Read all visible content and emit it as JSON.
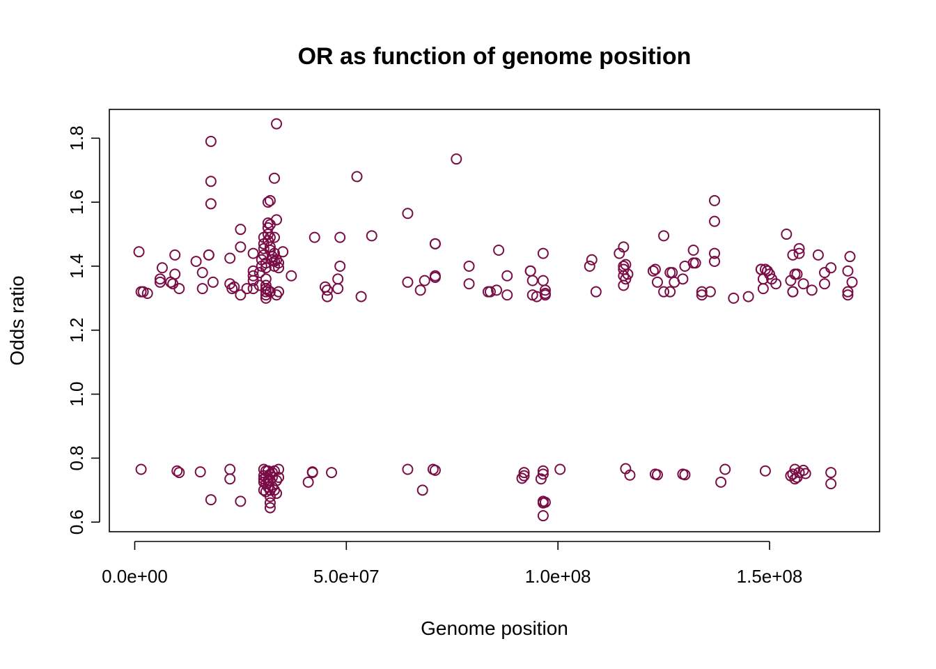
{
  "chart_data": {
    "type": "scatter",
    "title": "OR as function of genome position",
    "xlabel": "Genome position",
    "ylabel": "Odds ratio",
    "xlim": [
      -6000000,
      176000000
    ],
    "ylim": [
      0.57,
      1.89
    ],
    "x_ticks": [
      0,
      50000000,
      100000000,
      150000000
    ],
    "x_tick_labels": [
      "0.0e+00",
      "5.0e+07",
      "1.0e+08",
      "1.5e+08"
    ],
    "y_ticks": [
      0.6,
      0.8,
      1.0,
      1.2,
      1.4,
      1.6,
      1.8
    ],
    "y_tick_labels": [
      "0.6",
      "0.8",
      "1.0",
      "1.2",
      "1.4",
      "1.6",
      "1.8"
    ],
    "grid": false,
    "legend": "none",
    "point_color": "#7a0c45",
    "points": [
      [
        1000000,
        1.445
      ],
      [
        1500000,
        1.32
      ],
      [
        2000000,
        1.32
      ],
      [
        3000000,
        1.315
      ],
      [
        6000000,
        1.36
      ],
      [
        6000000,
        1.35
      ],
      [
        6500000,
        1.395
      ],
      [
        8500000,
        1.35
      ],
      [
        9000000,
        1.345
      ],
      [
        9500000,
        1.435
      ],
      [
        9500000,
        1.375
      ],
      [
        10500000,
        1.33
      ],
      [
        14500000,
        1.415
      ],
      [
        16000000,
        1.38
      ],
      [
        16000000,
        1.33
      ],
      [
        17500000,
        1.435
      ],
      [
        17500000,
        1.435
      ],
      [
        18000000,
        1.79
      ],
      [
        18000000,
        1.665
      ],
      [
        18000000,
        1.595
      ],
      [
        18500000,
        1.35
      ],
      [
        22500000,
        1.425
      ],
      [
        22500000,
        1.345
      ],
      [
        23000000,
        1.33
      ],
      [
        23500000,
        1.335
      ],
      [
        25000000,
        1.515
      ],
      [
        25000000,
        1.46
      ],
      [
        25000000,
        1.31
      ],
      [
        26500000,
        1.33
      ],
      [
        28000000,
        1.44
      ],
      [
        28000000,
        1.385
      ],
      [
        28000000,
        1.37
      ],
      [
        28000000,
        1.355
      ],
      [
        28000000,
        1.33
      ],
      [
        29500000,
        1.38
      ],
      [
        29500000,
        1.34
      ],
      [
        30000000,
        1.42
      ],
      [
        30000000,
        1.4
      ],
      [
        30500000,
        1.49
      ],
      [
        30500000,
        1.47
      ],
      [
        30500000,
        1.455
      ],
      [
        30500000,
        1.435
      ],
      [
        31000000,
        1.41
      ],
      [
        31000000,
        1.395
      ],
      [
        31000000,
        1.36
      ],
      [
        31000000,
        1.34
      ],
      [
        31000000,
        1.33
      ],
      [
        31000000,
        1.32
      ],
      [
        31000000,
        1.31
      ],
      [
        31000000,
        1.3
      ],
      [
        31500000,
        1.6
      ],
      [
        31500000,
        1.535
      ],
      [
        31500000,
        1.52
      ],
      [
        31500000,
        1.5
      ],
      [
        31500000,
        1.48
      ],
      [
        31500000,
        1.325
      ],
      [
        32000000,
        1.605
      ],
      [
        32000000,
        1.53
      ],
      [
        32000000,
        1.49
      ],
      [
        32000000,
        1.46
      ],
      [
        32000000,
        1.45
      ],
      [
        32000000,
        1.32
      ],
      [
        32500000,
        1.43
      ],
      [
        32500000,
        1.42
      ],
      [
        33000000,
        1.675
      ],
      [
        33000000,
        1.49
      ],
      [
        33000000,
        1.44
      ],
      [
        33000000,
        1.415
      ],
      [
        33000000,
        1.4
      ],
      [
        33500000,
        1.845
      ],
      [
        33500000,
        1.545
      ],
      [
        33500000,
        1.42
      ],
      [
        33500000,
        1.31
      ],
      [
        34000000,
        1.41
      ],
      [
        34000000,
        1.395
      ],
      [
        34000000,
        1.32
      ],
      [
        35000000,
        1.445
      ],
      [
        37000000,
        1.37
      ],
      [
        42500000,
        1.49
      ],
      [
        45000000,
        1.335
      ],
      [
        45500000,
        1.325
      ],
      [
        45500000,
        1.305
      ],
      [
        48000000,
        1.33
      ],
      [
        48000000,
        1.36
      ],
      [
        48500000,
        1.4
      ],
      [
        48500000,
        1.49
      ],
      [
        52500000,
        1.68
      ],
      [
        53500000,
        1.305
      ],
      [
        56000000,
        1.495
      ],
      [
        64500000,
        1.565
      ],
      [
        64500000,
        1.35
      ],
      [
        67500000,
        1.325
      ],
      [
        68500000,
        1.355
      ],
      [
        71000000,
        1.47
      ],
      [
        71000000,
        1.47
      ],
      [
        71000000,
        1.37
      ],
      [
        71000000,
        1.365
      ],
      [
        76000000,
        1.735
      ],
      [
        79000000,
        1.4
      ],
      [
        79000000,
        1.345
      ],
      [
        83500000,
        1.32
      ],
      [
        84000000,
        1.32
      ],
      [
        85500000,
        1.325
      ],
      [
        86000000,
        1.45
      ],
      [
        88000000,
        1.37
      ],
      [
        88000000,
        1.31
      ],
      [
        93500000,
        1.385
      ],
      [
        93500000,
        1.385
      ],
      [
        94000000,
        1.355
      ],
      [
        94000000,
        1.31
      ],
      [
        95000000,
        1.305
      ],
      [
        96500000,
        1.44
      ],
      [
        96500000,
        1.355
      ],
      [
        97000000,
        1.31
      ],
      [
        97000000,
        1.315
      ],
      [
        97000000,
        1.325
      ],
      [
        107500000,
        1.4
      ],
      [
        108000000,
        1.42
      ],
      [
        109000000,
        1.32
      ],
      [
        114500000,
        1.44
      ],
      [
        115500000,
        1.46
      ],
      [
        115500000,
        1.4
      ],
      [
        115500000,
        1.39
      ],
      [
        115500000,
        1.37
      ],
      [
        115500000,
        1.34
      ],
      [
        116000000,
        1.405
      ],
      [
        116000000,
        1.36
      ],
      [
        116500000,
        1.375
      ],
      [
        122500000,
        1.385
      ],
      [
        123000000,
        1.39
      ],
      [
        123500000,
        1.35
      ],
      [
        125000000,
        1.495
      ],
      [
        125000000,
        1.32
      ],
      [
        126500000,
        1.32
      ],
      [
        126500000,
        1.38
      ],
      [
        127000000,
        1.38
      ],
      [
        127500000,
        1.35
      ],
      [
        129500000,
        1.36
      ],
      [
        130000000,
        1.4
      ],
      [
        132000000,
        1.45
      ],
      [
        132000000,
        1.41
      ],
      [
        132500000,
        1.41
      ],
      [
        134000000,
        1.32
      ],
      [
        134000000,
        1.31
      ],
      [
        136000000,
        1.32
      ],
      [
        137000000,
        1.605
      ],
      [
        137000000,
        1.54
      ],
      [
        137000000,
        1.44
      ],
      [
        137000000,
        1.415
      ],
      [
        141500000,
        1.3
      ],
      [
        145000000,
        1.305
      ],
      [
        148000000,
        1.39
      ],
      [
        148000000,
        1.39
      ],
      [
        148500000,
        1.36
      ],
      [
        148500000,
        1.33
      ],
      [
        149000000,
        1.39
      ],
      [
        149500000,
        1.385
      ],
      [
        150000000,
        1.375
      ],
      [
        150500000,
        1.36
      ],
      [
        151500000,
        1.345
      ],
      [
        154000000,
        1.5
      ],
      [
        155000000,
        1.355
      ],
      [
        155500000,
        1.32
      ],
      [
        155500000,
        1.435
      ],
      [
        155500000,
        1.32
      ],
      [
        156000000,
        1.375
      ],
      [
        156500000,
        1.375
      ],
      [
        157000000,
        1.455
      ],
      [
        157000000,
        1.44
      ],
      [
        158000000,
        1.345
      ],
      [
        160000000,
        1.325
      ],
      [
        161500000,
        1.435
      ],
      [
        163000000,
        1.38
      ],
      [
        163000000,
        1.345
      ],
      [
        164500000,
        1.395
      ],
      [
        168500000,
        1.385
      ],
      [
        168500000,
        1.32
      ],
      [
        168500000,
        1.31
      ],
      [
        169000000,
        1.43
      ],
      [
        169500000,
        1.35
      ],
      [
        1500000,
        0.765
      ],
      [
        10000000,
        0.76
      ],
      [
        10500000,
        0.755
      ],
      [
        15500000,
        0.757
      ],
      [
        22500000,
        0.765
      ],
      [
        22500000,
        0.735
      ],
      [
        18000000,
        0.67
      ],
      [
        25000000,
        0.665
      ],
      [
        30500000,
        0.765
      ],
      [
        30500000,
        0.745
      ],
      [
        30500000,
        0.735
      ],
      [
        30500000,
        0.725
      ],
      [
        30500000,
        0.7
      ],
      [
        31000000,
        0.76
      ],
      [
        31000000,
        0.74
      ],
      [
        31000000,
        0.72
      ],
      [
        31000000,
        0.695
      ],
      [
        31500000,
        0.76
      ],
      [
        31500000,
        0.73
      ],
      [
        31500000,
        0.71
      ],
      [
        32000000,
        0.75
      ],
      [
        32000000,
        0.73
      ],
      [
        32000000,
        0.7
      ],
      [
        32000000,
        0.68
      ],
      [
        32000000,
        0.66
      ],
      [
        32000000,
        0.645
      ],
      [
        32500000,
        0.755
      ],
      [
        32500000,
        0.74
      ],
      [
        32500000,
        0.71
      ],
      [
        33000000,
        0.76
      ],
      [
        33000000,
        0.7
      ],
      [
        33500000,
        0.73
      ],
      [
        33500000,
        0.69
      ],
      [
        34000000,
        0.765
      ],
      [
        34000000,
        0.74
      ],
      [
        41000000,
        0.725
      ],
      [
        42000000,
        0.755
      ],
      [
        42000000,
        0.757
      ],
      [
        46500000,
        0.755
      ],
      [
        64500000,
        0.765
      ],
      [
        68000000,
        0.7
      ],
      [
        70500000,
        0.765
      ],
      [
        71000000,
        0.762
      ],
      [
        91500000,
        0.737
      ],
      [
        92000000,
        0.745
      ],
      [
        92000000,
        0.755
      ],
      [
        96000000,
        0.735
      ],
      [
        96500000,
        0.75
      ],
      [
        96500000,
        0.76
      ],
      [
        96500000,
        0.665
      ],
      [
        96500000,
        0.66
      ],
      [
        97000000,
        0.662
      ],
      [
        96500000,
        0.62
      ],
      [
        100500000,
        0.765
      ],
      [
        116000000,
        0.767
      ],
      [
        117000000,
        0.747
      ],
      [
        123000000,
        0.75
      ],
      [
        123500000,
        0.748
      ],
      [
        129500000,
        0.75
      ],
      [
        130000000,
        0.748
      ],
      [
        138500000,
        0.725
      ],
      [
        139500000,
        0.765
      ],
      [
        149000000,
        0.76
      ],
      [
        155000000,
        0.745
      ],
      [
        155500000,
        0.75
      ],
      [
        156000000,
        0.765
      ],
      [
        156000000,
        0.735
      ],
      [
        156500000,
        0.74
      ],
      [
        157000000,
        0.755
      ],
      [
        158000000,
        0.762
      ],
      [
        158500000,
        0.752
      ],
      [
        164500000,
        0.755
      ],
      [
        164500000,
        0.72
      ]
    ]
  }
}
